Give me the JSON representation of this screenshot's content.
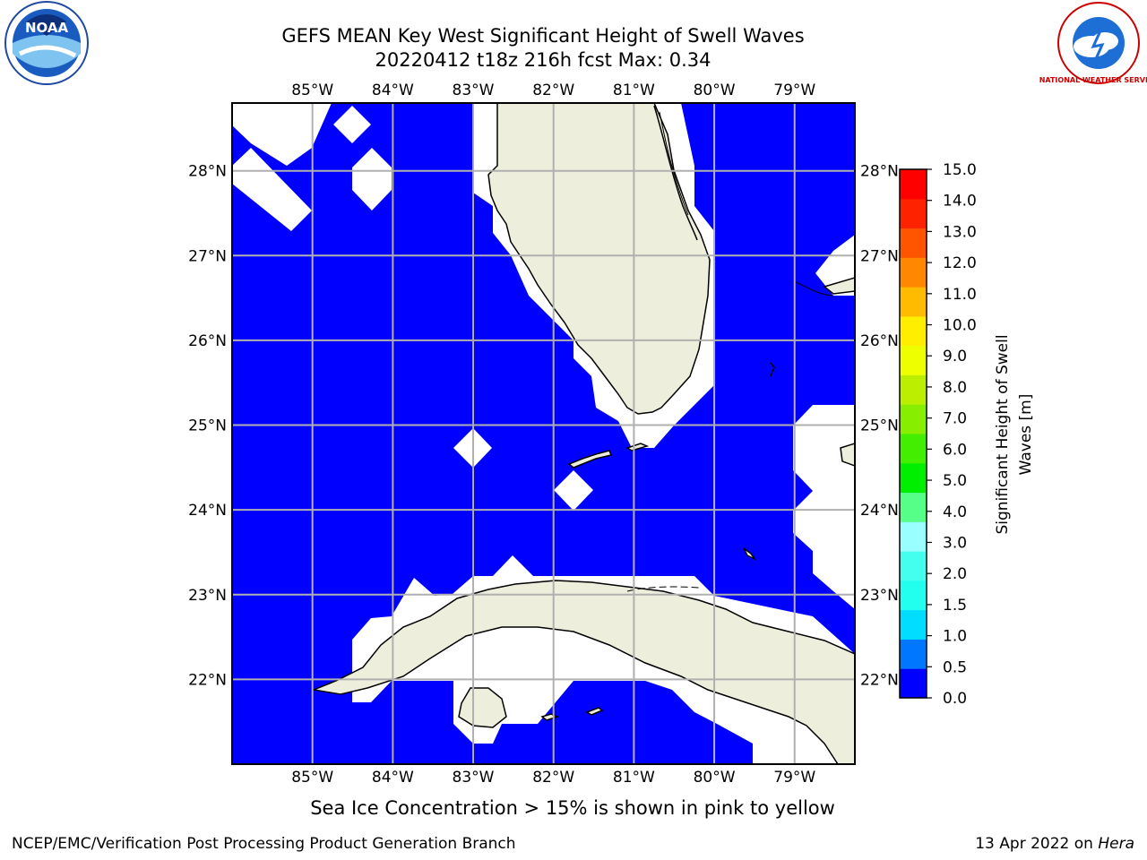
{
  "title_line1": "GEFS MEAN Key West Significant Height of Swell Waves",
  "title_line2": "20220412 t18z 216h fcst   Max: 0.34",
  "map": {
    "lon_labels": [
      "85°W",
      "84°W",
      "83°W",
      "82°W",
      "81°W",
      "80°W",
      "79°W"
    ],
    "lat_labels": [
      "28°N",
      "27°N",
      "26°N",
      "25°N",
      "24°N",
      "23°N",
      "22°N"
    ],
    "lon_range": [
      -86.0,
      -78.25
    ],
    "lat_range": [
      21.0,
      28.8
    ],
    "colors": {
      "ocean": "#0000ff",
      "land": "#eeeedd",
      "no_data": "#ffffff",
      "grid": "#b0b0b0"
    }
  },
  "colorbar": {
    "label_line1": "Significant Height of Swell",
    "label_line2": "Waves [m]",
    "ticks": [
      "0.0",
      "0.5",
      "1.0",
      "1.5",
      "2.0",
      "3.0",
      "4.0",
      "5.0",
      "6.0",
      "7.0",
      "8.0",
      "9.0",
      "10.0",
      "11.0",
      "12.0",
      "13.0",
      "14.0",
      "15.0"
    ],
    "colors": [
      "#0000ff",
      "#0077ff",
      "#00ddff",
      "#22ffee",
      "#44ffee",
      "#99ffff",
      "#55ff88",
      "#00ee00",
      "#44ee00",
      "#88ee00",
      "#bbee00",
      "#eeff00",
      "#ffee00",
      "#ffbb00",
      "#ff8800",
      "#ff5500",
      "#ff2200",
      "#ff0000"
    ]
  },
  "footer": {
    "sea_ice_note": "Sea Ice Concentration > 15% is shown in pink to yellow",
    "producer": "NCEP/EMC/Verification Post Processing Product Generation Branch",
    "date_prefix": "13 Apr 2022 on ",
    "host": "Hera"
  },
  "logos": {
    "noaa_text": "NOAA",
    "nws_text": "NATIONAL WEATHER SERVICE"
  }
}
